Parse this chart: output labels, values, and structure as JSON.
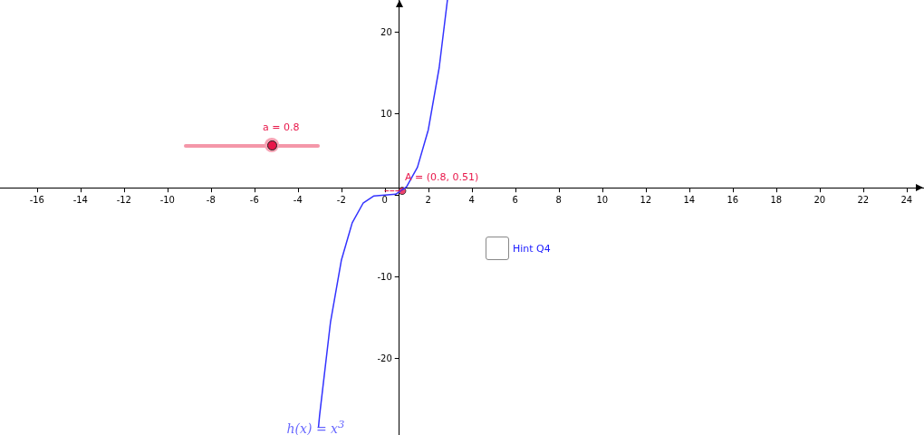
{
  "chart_data": {
    "type": "line",
    "xlim": [
      -17.7,
      24.8
    ],
    "ylim": [
      -29.4,
      23.9
    ],
    "xticks": [
      -16,
      -14,
      -12,
      -10,
      -8,
      -6,
      -4,
      -2,
      0,
      2,
      4,
      6,
      8,
      10,
      12,
      14,
      16,
      18,
      20,
      22,
      24
    ],
    "yticks": [
      -20,
      -10,
      {
        "value": 0,
        "label": null
      },
      10,
      20
    ],
    "grid": false,
    "series": [
      {
        "name": "h(x) = x$^{3}$",
        "color": "#3333ff",
        "marker": "none",
        "x": [
          -3.05,
          -3,
          -2.5,
          -2,
          -1.5,
          -1,
          -0.5,
          0,
          0.5,
          1,
          1.5,
          2,
          2.5,
          2.88
        ],
        "values": [
          -28.4,
          -27,
          -15.6,
          -8,
          -3.4,
          -1,
          -0.1,
          0,
          0.1,
          1,
          3.4,
          8,
          15.6,
          23.9
        ]
      },
      {
        "color": "#e8174a",
        "marker": "none",
        "line_style": "dashed",
        "x": [
          0,
          0.8
        ],
        "values": [
          0.51,
          0.51
        ]
      },
      {
        "type": "scatter",
        "color": "#e8174a",
        "marker": "circle",
        "x": [
          0.8
        ],
        "values": [
          0.51
        ]
      }
    ],
    "annotations": [
      "a = 0.8",
      {
        "text": "A = (0.8, 0.51)",
        "x": 0.8,
        "y": 0.51
      },
      "Hint Q4"
    ]
  }
}
